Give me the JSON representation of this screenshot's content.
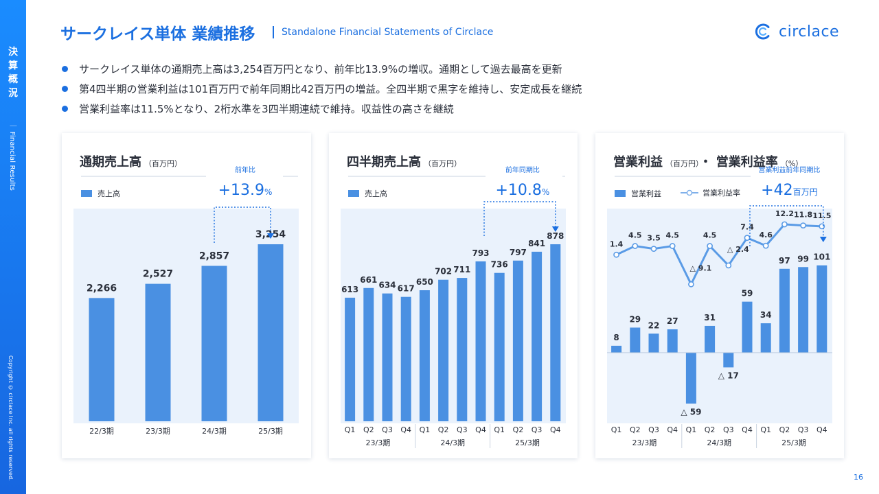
{
  "sidebar": {
    "title_chars": [
      "決",
      "算",
      "概",
      "況"
    ],
    "subtitle": "｜ Financial Results",
    "copyright": "Copyright © circlace Inc. all rights reserved."
  },
  "header": {
    "title": "サークレイス単体 業績推移",
    "subtitle_en": "Standalone Financial Statements of Circlace",
    "logo_text": "circlace"
  },
  "bullets": [
    "サークレイス単体の通期売上高は3,254百万円となり、前年比13.9%の増収。通期として過去最高を更新",
    "第4四半期の営業利益は101百万円で前年同期比42百万円の増益。全四半期で黒字を維持し、安定成長を継続",
    "営業利益率は11.5%となり、2桁水準を3四半期連続で維持。収益性の高さを継続"
  ],
  "page_number": "16",
  "colors": {
    "accent": "#1b6fe0",
    "bar": "#4a90e2",
    "panel": "#eaf2fc"
  },
  "cards": {
    "annual": {
      "title": "通期売上高",
      "unit": "（百万円）"
    },
    "quarterly": {
      "title": "四半期売上高",
      "unit": "（百万円）"
    },
    "profit": {
      "title": "営業利益",
      "unit": "（百万円）",
      "title2": "・ 営業利益率",
      "unit2": "（%）"
    }
  },
  "chart_data": [
    {
      "type": "bar",
      "title": "通期売上高（百万円）",
      "legend": "売上高",
      "categories": [
        "22/3期",
        "23/3期",
        "24/3期",
        "25/3期"
      ],
      "values": [
        2266,
        2527,
        2857,
        3254
      ],
      "value_labels": [
        "2,266",
        "2,527",
        "2,857",
        "3,254"
      ],
      "annotation": {
        "label": "前年比",
        "value": "+13.9",
        "unit": "%"
      }
    },
    {
      "type": "bar",
      "title": "四半期売上高（百万円）",
      "legend": "売上高",
      "quarters": [
        "Q1",
        "Q2",
        "Q3",
        "Q4"
      ],
      "groups": [
        "23/3期",
        "24/3期",
        "25/3期"
      ],
      "values": [
        613,
        661,
        634,
        617,
        650,
        702,
        711,
        793,
        736,
        797,
        841,
        878
      ],
      "annotation": {
        "label": "前年同期比",
        "value": "+10.8",
        "unit": "%"
      }
    },
    {
      "type": "bar",
      "title": "営業利益（百万円）・ 営業利益率（%）",
      "legend_bar": "営業利益",
      "legend_line": "営業利益率",
      "quarters": [
        "Q1",
        "Q2",
        "Q3",
        "Q4"
      ],
      "groups": [
        "23/3期",
        "24/3期",
        "25/3期"
      ],
      "profit": [
        8,
        29,
        22,
        27,
        -59,
        31,
        -17,
        59,
        34,
        97,
        99,
        101
      ],
      "profit_labels": [
        "8",
        "29",
        "22",
        "27",
        "△ 59",
        "31",
        "△ 17",
        "59",
        "34",
        "97",
        "99",
        "101"
      ],
      "margin": [
        1.4,
        4.5,
        3.5,
        4.5,
        -9.1,
        4.5,
        -2.4,
        7.4,
        4.6,
        12.2,
        11.8,
        11.5
      ],
      "margin_labels": [
        "1.4",
        "4.5",
        "3.5",
        "4.5",
        "△ 9.1",
        "4.5",
        "△ 2.4",
        "7.4",
        "4.6",
        "12.2",
        "11.8",
        "11.5"
      ],
      "annotation": {
        "label": "営業利益前年同期比",
        "value": "+42",
        "unit": "百万円"
      }
    }
  ]
}
